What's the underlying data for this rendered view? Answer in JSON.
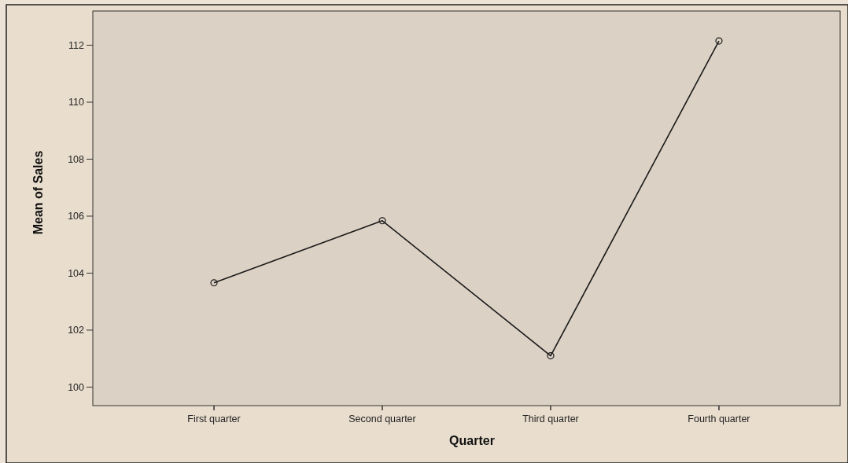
{
  "chart_data": {
    "type": "line",
    "xlabel": "Quarter",
    "ylabel": "Mean of Sales",
    "categories": [
      "First quarter",
      "Second quarter",
      "Third quarter",
      "Fourth quarter"
    ],
    "series": [
      {
        "color": "#1a1a1a",
        "values": [
          103.66,
          105.84,
          101.1,
          112.15
        ]
      }
    ],
    "ylim": [
      99.35,
      113.2
    ],
    "yticks": [
      100,
      102,
      104,
      106,
      108,
      110,
      112
    ],
    "marker": "circle",
    "grid": false
  }
}
